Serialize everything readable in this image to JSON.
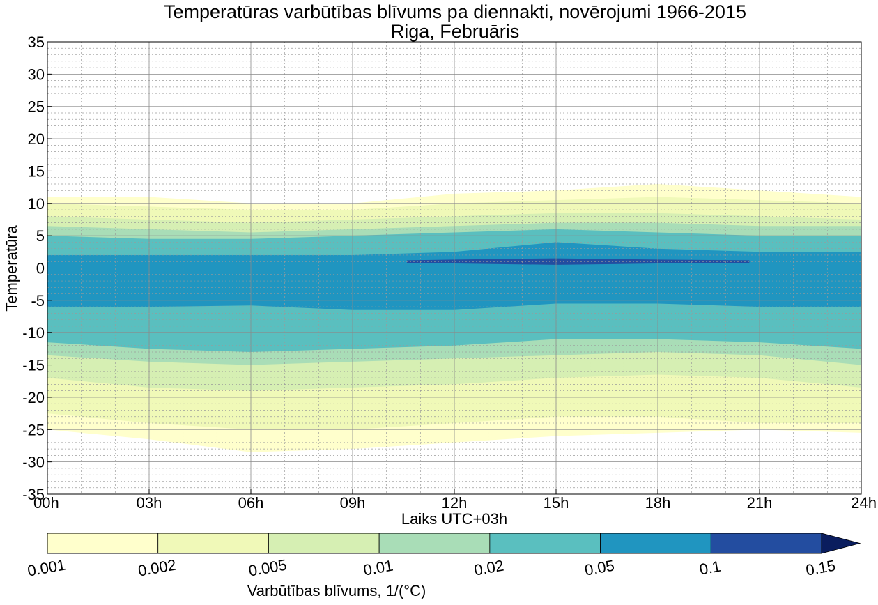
{
  "chart_data": {
    "type": "heatmap",
    "title": "Temperatūras varbūtības blīvums pa diennakti, novērojumi 1966-2015",
    "subtitle": "Riga, Februāris",
    "xlabel": "Laiks UTC+03h",
    "ylabel": "Temperatūra",
    "xlim": [
      0,
      24
    ],
    "ylim": [
      -35,
      35
    ],
    "x_ticks": [
      0,
      3,
      6,
      9,
      12,
      15,
      18,
      21,
      24
    ],
    "x_tick_labels": [
      "00h",
      "03h",
      "06h",
      "09h",
      "12h",
      "15h",
      "18h",
      "21h",
      "24h"
    ],
    "y_ticks": [
      -35,
      -30,
      -25,
      -20,
      -15,
      -10,
      -5,
      0,
      5,
      10,
      15,
      20,
      25,
      30,
      35
    ],
    "y_tick_labels": [
      "-35",
      "-30",
      "-25",
      "-20",
      "-15",
      "-10",
      "-5",
      "0",
      "5",
      "10",
      "15",
      "20",
      "25",
      "30",
      "35"
    ],
    "grid": true,
    "minor_grid": true,
    "colorbar": {
      "label": "Varbūtības blīvums, 1/(°C)",
      "levels": [
        0.001,
        0.002,
        0.005,
        0.01,
        0.02,
        0.05,
        0.1,
        0.15
      ],
      "level_labels": [
        "0.001",
        "0.002",
        "0.005",
        "0.01",
        "0.02",
        "0.05",
        "0.1",
        "0.15"
      ],
      "colors": [
        "#ffffcc",
        "#f0f9b8",
        "#d6efb3",
        "#a9ddb7",
        "#5abfbf",
        "#2095c0",
        "#234da0",
        "#0a1d5e"
      ],
      "extend": "max"
    },
    "contour_bands": [
      {
        "level": 0.001,
        "x": [
          0,
          3,
          6,
          9,
          12,
          15,
          18,
          21,
          24
        ],
        "top": [
          11,
          11,
          10,
          10,
          11.5,
          12,
          13,
          12,
          11
        ],
        "bottom": [
          -25,
          -26.5,
          -28.5,
          -28,
          -27,
          -26,
          -25.5,
          -25,
          -25.5
        ]
      },
      {
        "level": 0.002,
        "x": [
          0,
          3,
          6,
          9,
          12,
          15,
          18,
          21,
          24
        ],
        "top": [
          10,
          9.5,
          9,
          9,
          10,
          10.5,
          11,
          10.5,
          10
        ],
        "bottom": [
          -22.5,
          -24,
          -25,
          -25,
          -24,
          -23,
          -23,
          -24,
          -24
        ]
      },
      {
        "level": 0.005,
        "x": [
          0,
          3,
          6,
          9,
          12,
          15,
          18,
          21,
          24
        ],
        "top": [
          8,
          7.5,
          7,
          7.5,
          8,
          8.5,
          8.5,
          8,
          7.5
        ],
        "bottom": [
          -17,
          -18.5,
          -19,
          -18.5,
          -18,
          -17,
          -16.5,
          -17,
          -18.5
        ]
      },
      {
        "level": 0.01,
        "x": [
          0,
          3,
          6,
          9,
          12,
          15,
          18,
          21,
          24
        ],
        "top": [
          6.5,
          6,
          5.5,
          6,
          6.5,
          7,
          7,
          6.5,
          6.5
        ],
        "bottom": [
          -13.5,
          -14.5,
          -15,
          -14.5,
          -14,
          -13.5,
          -13,
          -13.5,
          -15
        ]
      },
      {
        "level": 0.02,
        "x": [
          0,
          3,
          6,
          9,
          12,
          15,
          18,
          21,
          24
        ],
        "top": [
          5,
          4.5,
          4.5,
          5,
          5.5,
          6,
          5.5,
          5,
          5
        ],
        "bottom": [
          -11.5,
          -12.5,
          -13,
          -12.5,
          -12,
          -11,
          -11,
          -11.5,
          -12.5
        ]
      },
      {
        "level": 0.05,
        "x": [
          0,
          3,
          6,
          9,
          12,
          15,
          18,
          21,
          24
        ],
        "top": [
          2,
          2,
          2,
          2,
          2.5,
          4,
          3,
          2.5,
          2.5
        ],
        "bottom": [
          -6,
          -6,
          -5.8,
          -6.5,
          -6.5,
          -5.5,
          -5.5,
          -6,
          -6
        ]
      },
      {
        "level": 0.1,
        "x": [
          10.6,
          12,
          15,
          18,
          20.7
        ],
        "top": [
          1.2,
          1.3,
          1.5,
          1.3,
          1.2
        ],
        "bottom": [
          0.8,
          0.7,
          0.5,
          0.7,
          0.8
        ]
      }
    ]
  }
}
